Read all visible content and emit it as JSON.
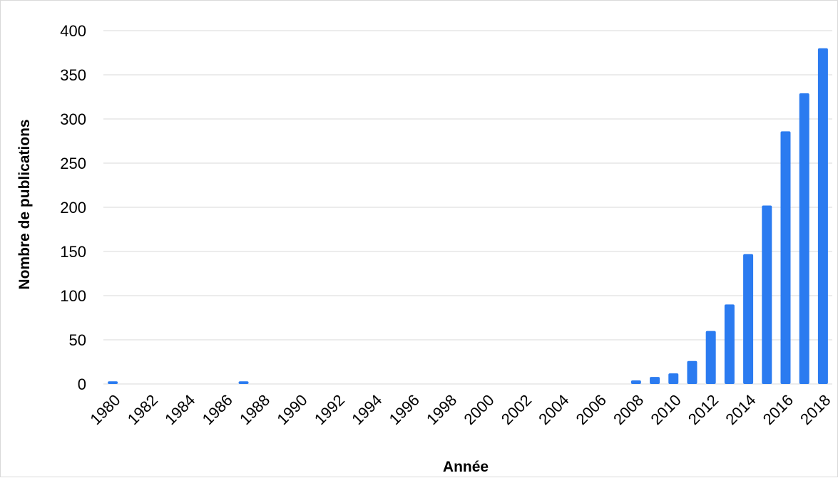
{
  "chart_data": {
    "type": "bar",
    "title": "",
    "xlabel": "Année",
    "ylabel": "Nombre de publications",
    "ylim": [
      0,
      400
    ],
    "yticks": [
      0,
      50,
      100,
      150,
      200,
      250,
      300,
      350,
      400
    ],
    "grid": true,
    "legend": "none",
    "bar_color": "#2b7bf0",
    "categories": [
      "1980",
      "1981",
      "1982",
      "1983",
      "1984",
      "1985",
      "1986",
      "1987",
      "1988",
      "1989",
      "1990",
      "1991",
      "1992",
      "1993",
      "1994",
      "1995",
      "1996",
      "1997",
      "1998",
      "1999",
      "2000",
      "2001",
      "2002",
      "2003",
      "2004",
      "2005",
      "2006",
      "2007",
      "2008",
      "2009",
      "2010",
      "2011",
      "2012",
      "2013",
      "2014",
      "2015",
      "2016",
      "2017",
      "2018"
    ],
    "tick_labels": [
      "1980",
      "1982",
      "1984",
      "1986",
      "1988",
      "1990",
      "1992",
      "1994",
      "1996",
      "1998",
      "2000",
      "2002",
      "2004",
      "2006",
      "2008",
      "2010",
      "2012",
      "2014",
      "2016",
      "2018"
    ],
    "values": [
      3,
      0,
      0,
      0,
      0,
      0,
      0,
      3,
      0,
      0,
      0,
      0,
      0,
      0,
      0,
      0,
      0,
      0,
      0,
      0,
      0,
      0,
      0,
      0,
      0,
      0,
      0,
      0,
      4,
      8,
      12,
      26,
      60,
      90,
      147,
      202,
      286,
      329,
      380
    ]
  }
}
